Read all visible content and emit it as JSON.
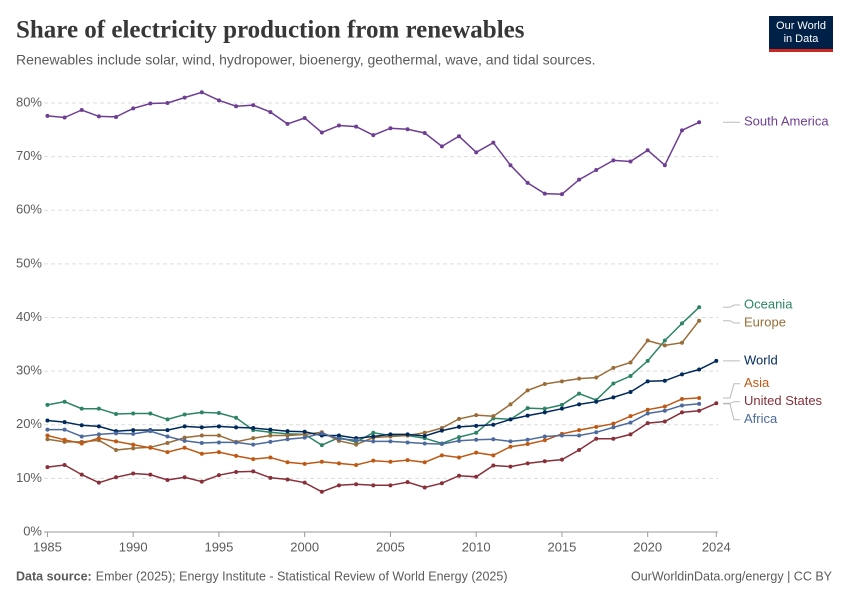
{
  "chart_data": {
    "type": "line",
    "title": "Share of electricity production from renewables",
    "subtitle": "Renewables include solar, wind, hydropower, bioenergy, geothermal, wave, and tidal sources.",
    "logo": [
      "Our World",
      "in Data"
    ],
    "source_label": "Data source:",
    "source": "Ember (2025); Energy Institute - Statistical Review of World Energy (2025)",
    "footer_right": "OurWorldinData.org/energy | CC BY",
    "x": [
      1985,
      1986,
      1987,
      1988,
      1989,
      1990,
      1991,
      1992,
      1993,
      1994,
      1995,
      1996,
      1997,
      1998,
      1999,
      2000,
      2001,
      2002,
      2003,
      2004,
      2005,
      2006,
      2007,
      2008,
      2009,
      2010,
      2011,
      2012,
      2013,
      2014,
      2015,
      2016,
      2017,
      2018,
      2019,
      2020,
      2021,
      2022,
      2023,
      2024
    ],
    "xlim": [
      1984.8,
      2024.1
    ],
    "xticks": [
      1985,
      1990,
      1995,
      2000,
      2005,
      2010,
      2015,
      2020,
      2024
    ],
    "ylim": [
      0,
      80
    ],
    "yticks": [
      {
        "value": 0,
        "label": "0%"
      },
      {
        "value": 10,
        "label": "10%"
      },
      {
        "value": 20,
        "label": "20%"
      },
      {
        "value": 30,
        "label": "30%"
      },
      {
        "value": 40,
        "label": "40%"
      },
      {
        "value": 50,
        "label": "50%"
      },
      {
        "value": 60,
        "label": "60%"
      },
      {
        "value": 70,
        "label": "70%"
      },
      {
        "value": 80,
        "label": "80%"
      }
    ],
    "grid": true,
    "series": [
      {
        "name": "South America",
        "color": "#6d3e91",
        "values": [
          77.6,
          77.3,
          78.7,
          77.5,
          77.4,
          79.0,
          79.9,
          80.0,
          81.0,
          82.0,
          80.5,
          79.4,
          79.6,
          78.3,
          76.1,
          77.2,
          74.5,
          75.8,
          75.6,
          74.0,
          75.3,
          75.1,
          74.4,
          71.9,
          73.8,
          70.8,
          72.6,
          68.4,
          65.1,
          63.1,
          63.0,
          65.7,
          67.5,
          69.3,
          69.1,
          71.2,
          68.4,
          74.9,
          76.4,
          null
        ]
      },
      {
        "name": "Oceania",
        "color": "#2c8465",
        "values": [
          23.7,
          24.3,
          23.0,
          23.0,
          22.0,
          22.1,
          22.1,
          21.0,
          21.9,
          22.3,
          22.2,
          21.3,
          19.0,
          18.6,
          18.3,
          18.2,
          16.2,
          17.6,
          16.8,
          18.5,
          18.0,
          18.0,
          17.5,
          16.5,
          17.7,
          18.5,
          21.2,
          21.0,
          23.1,
          23.0,
          23.7,
          25.8,
          24.6,
          27.7,
          29.1,
          31.9,
          35.7,
          38.9,
          41.9,
          null
        ]
      },
      {
        "name": "Europe",
        "color": "#996d39",
        "values": [
          17.3,
          16.8,
          16.8,
          17.1,
          15.3,
          15.6,
          15.8,
          16.6,
          17.6,
          18.0,
          18.0,
          16.8,
          17.5,
          18.0,
          18.0,
          18.2,
          18.6,
          17.0,
          16.3,
          17.6,
          17.8,
          18.0,
          18.5,
          19.4,
          21.1,
          21.8,
          21.6,
          23.8,
          26.4,
          27.6,
          28.1,
          28.6,
          28.8,
          30.6,
          31.6,
          35.7,
          34.8,
          35.3,
          39.4,
          null
        ]
      },
      {
        "name": "World",
        "color": "#00295b",
        "values": [
          20.8,
          20.5,
          19.9,
          19.7,
          18.8,
          19.0,
          19.0,
          19.0,
          19.7,
          19.5,
          19.7,
          19.5,
          19.4,
          19.1,
          18.8,
          18.7,
          18.0,
          18.0,
          17.5,
          17.8,
          18.2,
          18.2,
          17.9,
          18.9,
          19.6,
          19.8,
          20.0,
          21.0,
          21.7,
          22.3,
          23.0,
          23.8,
          24.3,
          25.1,
          26.1,
          28.1,
          28.2,
          29.4,
          30.3,
          31.9
        ]
      },
      {
        "name": "Asia",
        "color": "#be5915",
        "values": [
          18.0,
          17.2,
          16.5,
          17.5,
          16.9,
          16.3,
          15.7,
          14.9,
          15.7,
          14.6,
          14.9,
          14.2,
          13.6,
          13.9,
          13.0,
          12.7,
          13.1,
          12.8,
          12.5,
          13.3,
          13.1,
          13.4,
          13.0,
          14.3,
          13.9,
          14.8,
          14.3,
          15.9,
          16.4,
          17.1,
          18.3,
          19.0,
          19.6,
          20.2,
          21.6,
          22.8,
          23.4,
          24.8,
          25.0,
          null
        ]
      },
      {
        "name": "United States",
        "color": "#883039",
        "values": [
          12.1,
          12.5,
          10.7,
          9.2,
          10.2,
          10.9,
          10.7,
          9.7,
          10.2,
          9.4,
          10.6,
          11.2,
          11.3,
          10.1,
          9.8,
          9.2,
          7.5,
          8.7,
          8.9,
          8.7,
          8.7,
          9.3,
          8.3,
          9.1,
          10.5,
          10.3,
          12.4,
          12.2,
          12.8,
          13.2,
          13.5,
          15.3,
          17.4,
          17.4,
          18.2,
          20.3,
          20.6,
          22.3,
          22.6,
          24.0
        ]
      },
      {
        "name": "Africa",
        "color": "#4c6a9c",
        "values": [
          19.1,
          19.1,
          17.8,
          18.2,
          18.4,
          18.3,
          18.8,
          17.8,
          17.0,
          16.6,
          16.7,
          16.7,
          16.3,
          16.8,
          17.3,
          17.6,
          18.4,
          17.4,
          17.1,
          16.9,
          16.9,
          16.7,
          16.5,
          16.4,
          17.0,
          17.2,
          17.3,
          16.9,
          17.2,
          17.8,
          18.0,
          18.0,
          18.6,
          19.5,
          20.4,
          22.1,
          22.6,
          23.6,
          23.9,
          null
        ]
      }
    ]
  }
}
